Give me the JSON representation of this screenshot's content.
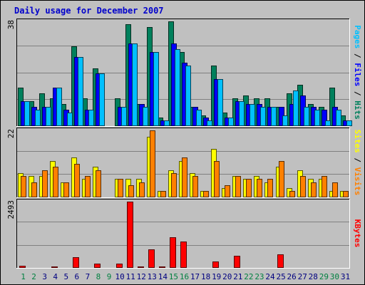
{
  "chart_data": {
    "type": "bar",
    "title": "Daily usage for December 2007",
    "days": [
      1,
      2,
      3,
      4,
      5,
      6,
      7,
      8,
      9,
      10,
      11,
      12,
      13,
      14,
      15,
      16,
      17,
      18,
      19,
      20,
      21,
      22,
      23,
      24,
      25,
      26,
      27,
      28,
      29,
      30,
      31
    ],
    "weekend_days": [
      1,
      2,
      8,
      9,
      15,
      16,
      22,
      23,
      29,
      30
    ],
    "colors": {
      "hits": "#00805c",
      "files": "#0000ff",
      "pages": "#00c0ff",
      "visits": "#ff8000",
      "sites": "#ffff00",
      "kbytes": "#ff0000",
      "weekday_label": "#000080",
      "weekend_label": "#008040"
    },
    "panels": [
      {
        "id": "hits-files-pages",
        "ymax_label": "38",
        "ymax": 38,
        "right_label": [
          {
            "text": "Pages",
            "color": "#00c0ff"
          },
          {
            "text": " / ",
            "color": "#000000"
          },
          {
            "text": "Files",
            "color": "#0000ff"
          },
          {
            "text": " / ",
            "color": "#000000"
          },
          {
            "text": "Hits",
            "color": "#00805c"
          }
        ],
        "series": [
          {
            "name": "Hits",
            "color": "#00805c",
            "values": [
              14,
              9,
              12,
              10,
              8,
              29,
              10,
              21,
              0,
              10,
              37,
              8,
              36,
              3,
              38,
              27,
              7,
              4,
              22,
              5,
              10,
              11,
              10,
              10,
              7,
              12,
              15,
              8,
              7,
              14,
              4
            ]
          },
          {
            "name": "Files",
            "color": "#0000ff",
            "values": [
              9,
              7,
              7,
              14,
              6,
              25,
              6,
              19,
              0,
              7,
              30,
              8,
              27,
              2,
              30,
              23,
              7,
              3,
              17,
              3,
              9,
              8,
              8,
              7,
              7,
              8,
              11,
              7,
              6,
              7,
              2
            ]
          },
          {
            "name": "Pages",
            "color": "#00c0ff",
            "values": [
              9,
              6,
              7,
              14,
              5,
              25,
              6,
              19,
              0,
              7,
              30,
              7,
              27,
              2,
              28,
              22,
              6,
              2,
              17,
              3,
              9,
              8,
              7,
              7,
              4,
              13,
              7,
              6,
              2,
              6,
              2
            ]
          }
        ]
      },
      {
        "id": "sites-visits",
        "ymax_label": "22",
        "ymax": 22,
        "right_label": [
          {
            "text": "Sites",
            "color": "#ffff00"
          },
          {
            "text": " / ",
            "color": "#000000"
          },
          {
            "text": "Visits",
            "color": "#ff8000"
          }
        ],
        "series": [
          {
            "name": "Sites",
            "color": "#ffff00",
            "values": [
              8,
              7,
              7,
              12,
              5,
              13,
              6,
              10,
              0,
              6,
              6,
              6,
              20,
              2,
              9,
              12,
              8,
              2,
              16,
              3,
              7,
              6,
              7,
              5,
              10,
              3,
              9,
              6,
              6,
              2,
              2
            ]
          },
          {
            "name": "Visits",
            "color": "#ff8000",
            "values": [
              7,
              5,
              9,
              10,
              5,
              11,
              7,
              9,
              0,
              6,
              4,
              5,
              22,
              2,
              8,
              13,
              7,
              2,
              12,
              4,
              7,
              6,
              6,
              6,
              12,
              2,
              7,
              5,
              7,
              5,
              2
            ]
          }
        ]
      },
      {
        "id": "kbytes",
        "ymax_label": "2493",
        "ymax": 2493,
        "right_label": [
          {
            "text": "KBytes",
            "color": "#ff0000"
          }
        ],
        "series": [
          {
            "name": "KBytes",
            "color": "#ff0000",
            "values": [
              70,
              20,
              40,
              60,
              30,
              400,
              40,
              150,
              0,
              150,
              2493,
              60,
              700,
              50,
              1150,
              1000,
              30,
              40,
              250,
              20,
              450,
              20,
              20,
              20,
              500,
              30,
              30,
              20,
              20,
              20,
              20
            ]
          }
        ]
      }
    ]
  }
}
